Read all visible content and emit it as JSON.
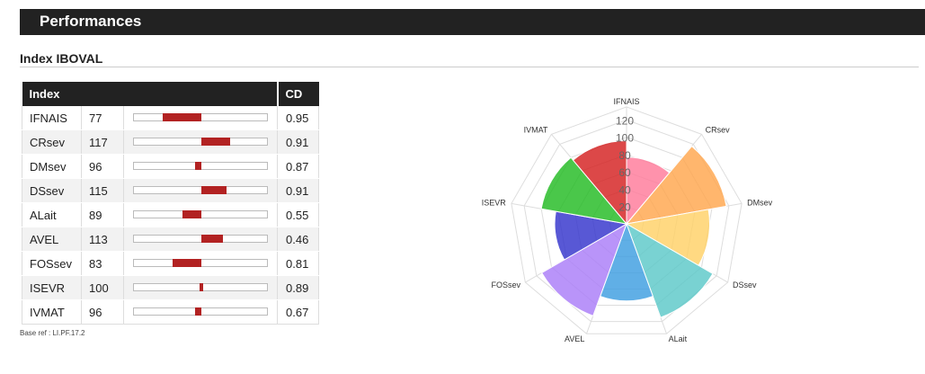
{
  "header": {
    "title": "Performances"
  },
  "section": {
    "title": "Index IBOVAL"
  },
  "table": {
    "columns": [
      "Index",
      "CD"
    ],
    "rows": [
      {
        "name": "IFNAIS",
        "value": 77,
        "cd": "0.95"
      },
      {
        "name": "CRsev",
        "value": 117,
        "cd": "0.91"
      },
      {
        "name": "DMsev",
        "value": 96,
        "cd": "0.87"
      },
      {
        "name": "DSsev",
        "value": 115,
        "cd": "0.91"
      },
      {
        "name": "ALait",
        "value": 89,
        "cd": "0.55"
      },
      {
        "name": "AVEL",
        "value": 113,
        "cd": "0.46"
      },
      {
        "name": "FOSsev",
        "value": 83,
        "cd": "0.81"
      },
      {
        "name": "ISEVR",
        "value": 100,
        "cd": "0.89"
      },
      {
        "name": "IVMAT",
        "value": 96,
        "cd": "0.67"
      }
    ],
    "bar_range": [
      60,
      140
    ],
    "bar_reference": 100,
    "bar_color": "#b22222"
  },
  "footer": {
    "base_ref": "Base ref : LI.PF.17.2"
  },
  "chart_data": {
    "type": "polar-area",
    "categories": [
      "IFNAIS",
      "CRsev",
      "DMsev",
      "DSsev",
      "ALait",
      "AVEL",
      "FOSsev",
      "ISEVR",
      "IVMAT"
    ],
    "values": [
      77,
      117,
      96,
      115,
      89,
      113,
      83,
      100,
      96
    ],
    "colors": [
      "#ff7a9a",
      "#ffa64d",
      "#ffd166",
      "#5cc8c8",
      "#3d9ee0",
      "#a97cf8",
      "#3333cc",
      "#22bb22",
      "#d42020"
    ],
    "ticks": [
      "20",
      "40",
      "60",
      "80",
      "100",
      "120"
    ],
    "rmax": 120
  }
}
